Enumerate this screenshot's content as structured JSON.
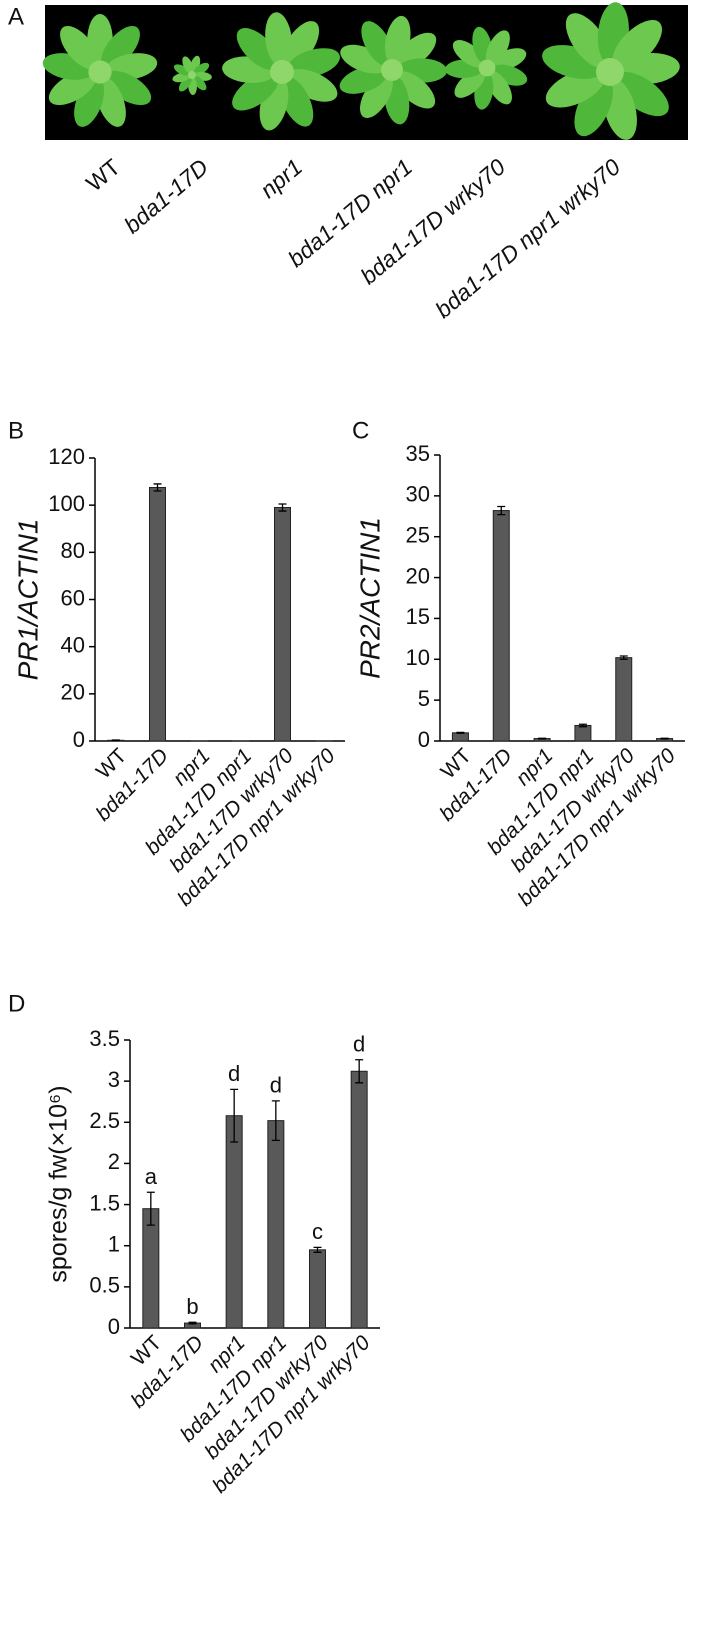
{
  "photo": {
    "panel": "A",
    "labels": [
      "WT",
      "bda1-17D",
      "npr1",
      "bda1-17D  npr1",
      "bda1-17D wrky70",
      "bda1-17D  npr1 wrky70"
    ]
  },
  "chart_data": [
    {
      "type": "bar",
      "panel": "B",
      "ylabel": "PR1/ACTIN1",
      "categories": [
        "WT",
        "bda1-17D",
        "npr1",
        "bda1-17D  npr1",
        "bda1-17D wrky70",
        "bda1-17D  npr1 wrky70"
      ],
      "values": [
        0.3,
        107.5,
        0,
        0,
        99,
        0
      ],
      "errors": [
        0.1,
        1.5,
        0,
        0,
        1.5,
        0
      ],
      "color": "#595959",
      "ylim": [
        0,
        120
      ],
      "yticks": [
        0,
        20,
        40,
        60,
        80,
        100,
        120
      ]
    },
    {
      "type": "bar",
      "panel": "C",
      "ylabel": "PR2/ACTIN1",
      "categories": [
        "WT",
        "bda1-17D",
        "npr1",
        "bda1-17D  npr1",
        "bda1-17D wrky70",
        "bda1-17D  npr1 wrky70"
      ],
      "values": [
        1.0,
        28.2,
        0.3,
        1.9,
        10.2,
        0.3
      ],
      "errors": [
        0.05,
        0.5,
        0.03,
        0.15,
        0.2,
        0.03
      ],
      "color": "#595959",
      "ylim": [
        0,
        35
      ],
      "yticks": [
        0,
        5,
        10,
        15,
        20,
        25,
        30,
        35
      ]
    },
    {
      "type": "bar",
      "panel": "D",
      "ylabel": "spores/g fw(×10⁶)",
      "categories": [
        "WT",
        "bda1-17D",
        "npr1",
        "bda1-17D  npr1",
        "bda1-17D wrky70",
        "bda1-17D  npr1 wrky70"
      ],
      "values": [
        1.45,
        0.06,
        2.58,
        2.52,
        0.95,
        3.12
      ],
      "errors": [
        0.2,
        0.01,
        0.32,
        0.24,
        0.03,
        0.14
      ],
      "letters": [
        "a",
        "b",
        "d",
        "d",
        "c",
        "d"
      ],
      "color": "#595959",
      "ylim": [
        0,
        3.5
      ],
      "yticks": [
        0,
        0.5,
        1,
        1.5,
        2,
        2.5,
        3,
        3.5
      ]
    }
  ]
}
